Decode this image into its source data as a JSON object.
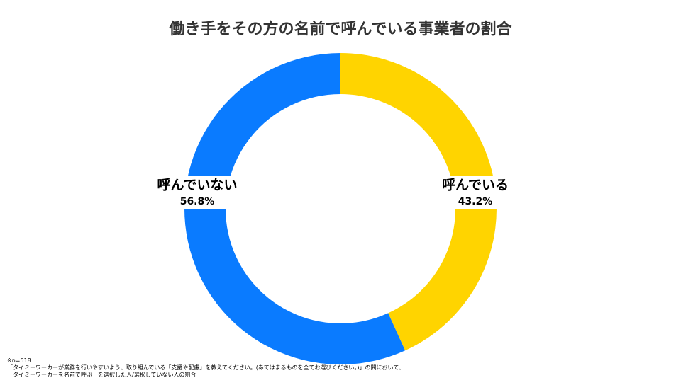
{
  "chart_data": {
    "type": "pie",
    "donut": true,
    "title": "働き手をその方の名前で呼んでいる事業者の割合",
    "categories": [
      "呼んでいる",
      "呼んでいない"
    ],
    "values": [
      43.2,
      56.8
    ],
    "value_labels": [
      "43.2%",
      "56.8%"
    ],
    "colors": [
      "#FFD400",
      "#0A7BFF"
    ],
    "notes": [
      "※n=518",
      "「タイミーワーカーが業務を行いやすいよう、取り組んでいる「支援や配慮」を教えてください。(あてはまるものを全てお選びください。)」の問において、",
      "「タイミーワーカーを名前で呼ぶ」を選択した人/選択していない人の割合"
    ]
  }
}
